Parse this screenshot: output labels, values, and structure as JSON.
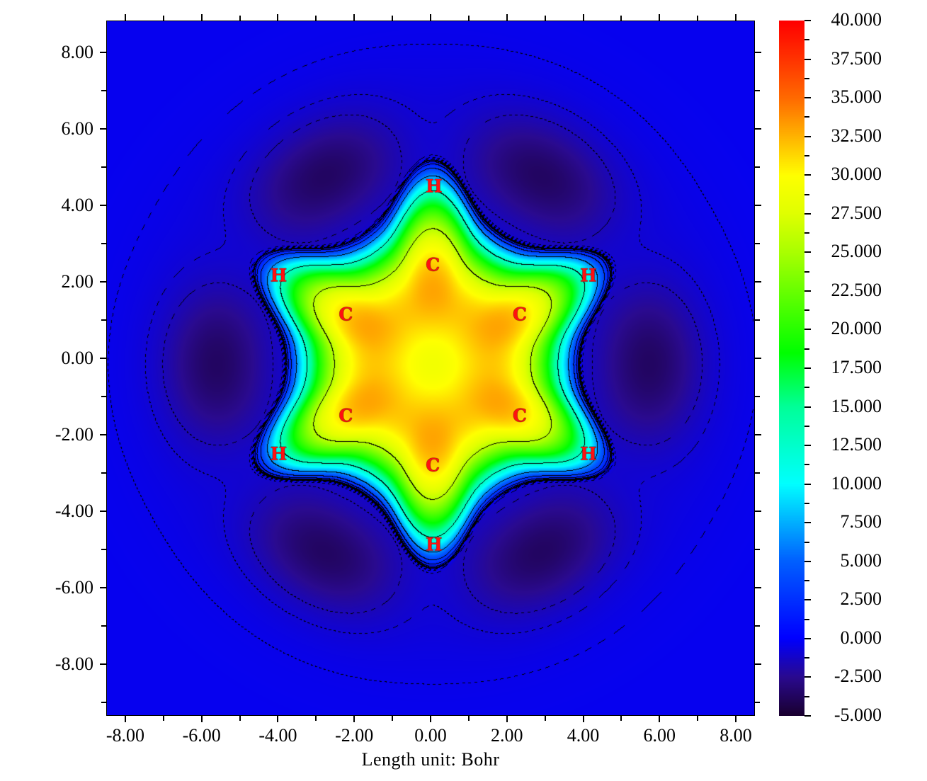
{
  "chart_data": {
    "type": "heatmap",
    "subtype": "filled contour map with contour lines",
    "xlabel": "Length unit: Bohr",
    "ylabel": "",
    "xlim": [
      -8.5,
      8.5
    ],
    "ylim": [
      -9.35,
      8.83
    ],
    "x_ticks": [
      "-8.00",
      "-6.00",
      "-4.00",
      "-2.00",
      "0.00",
      "2.00",
      "4.00",
      "6.00",
      "8.00"
    ],
    "x_tick_values": [
      -8,
      -6,
      -4,
      -2,
      0,
      2,
      4,
      6,
      8
    ],
    "y_ticks": [
      "8.00",
      "6.00",
      "4.00",
      "2.00",
      "0.00",
      "-2.00",
      "-4.00",
      "-6.00",
      "-8.00"
    ],
    "y_tick_values": [
      8,
      6,
      4,
      2,
      0,
      -2,
      -4,
      -6,
      -8
    ],
    "colorbar": {
      "range": [
        -5,
        40
      ],
      "tick_labels": [
        "40.000",
        "37.500",
        "35.000",
        "32.500",
        "30.000",
        "27.500",
        "25.000",
        "22.500",
        "20.000",
        "17.500",
        "15.000",
        "12.500",
        "10.000",
        "7.500",
        "5.000",
        "2.500",
        "0.000",
        "-2.500",
        "-5.000"
      ],
      "tick_values": [
        40,
        37.5,
        35,
        32.5,
        30,
        27.5,
        25,
        22.5,
        20,
        17.5,
        15,
        12.5,
        10,
        7.5,
        5,
        2.5,
        0,
        -2.5,
        -5
      ],
      "colormap_stops": [
        [
          -5,
          "#1a0030"
        ],
        [
          -2.5,
          "#2a0a90"
        ],
        [
          0,
          "#0000ff"
        ],
        [
          5,
          "#0060ff"
        ],
        [
          10,
          "#00ffff"
        ],
        [
          15,
          "#00ff99"
        ],
        [
          18.5,
          "#00ff00"
        ],
        [
          25,
          "#aaff00"
        ],
        [
          27.5,
          "#e0ff00"
        ],
        [
          30,
          "#ffff00"
        ],
        [
          32.5,
          "#ffb400"
        ],
        [
          35,
          "#ff6a00"
        ],
        [
          37.5,
          "#ff3400"
        ],
        [
          40,
          "#ff0000"
        ]
      ]
    },
    "contour_levels_positive_solid": [
      0.1,
      0.2,
      0.4,
      0.8,
      1.6,
      3.2,
      6.4,
      12.8,
      25.6
    ],
    "contour_levels_negative_dashed": [
      -0.2,
      -0.5,
      -1.0,
      -1.6
    ],
    "atoms": [
      {
        "label": "H",
        "x": 0.07,
        "y": 4.52
      },
      {
        "label": "C",
        "x": 0.04,
        "y": 2.46
      },
      {
        "label": "C",
        "x": -2.24,
        "y": 1.17
      },
      {
        "label": "C",
        "x": 2.32,
        "y": 1.17
      },
      {
        "label": "H",
        "x": -4.0,
        "y": 2.19
      },
      {
        "label": "H",
        "x": 4.12,
        "y": 2.19
      },
      {
        "label": "C",
        "x": -2.24,
        "y": -1.48
      },
      {
        "label": "C",
        "x": 2.32,
        "y": -1.48
      },
      {
        "label": "H",
        "x": -4.0,
        "y": -2.48
      },
      {
        "label": "H",
        "x": 4.12,
        "y": -2.48
      },
      {
        "label": "C",
        "x": 0.04,
        "y": -2.78
      },
      {
        "label": "H",
        "x": 0.07,
        "y": -4.85
      }
    ]
  }
}
